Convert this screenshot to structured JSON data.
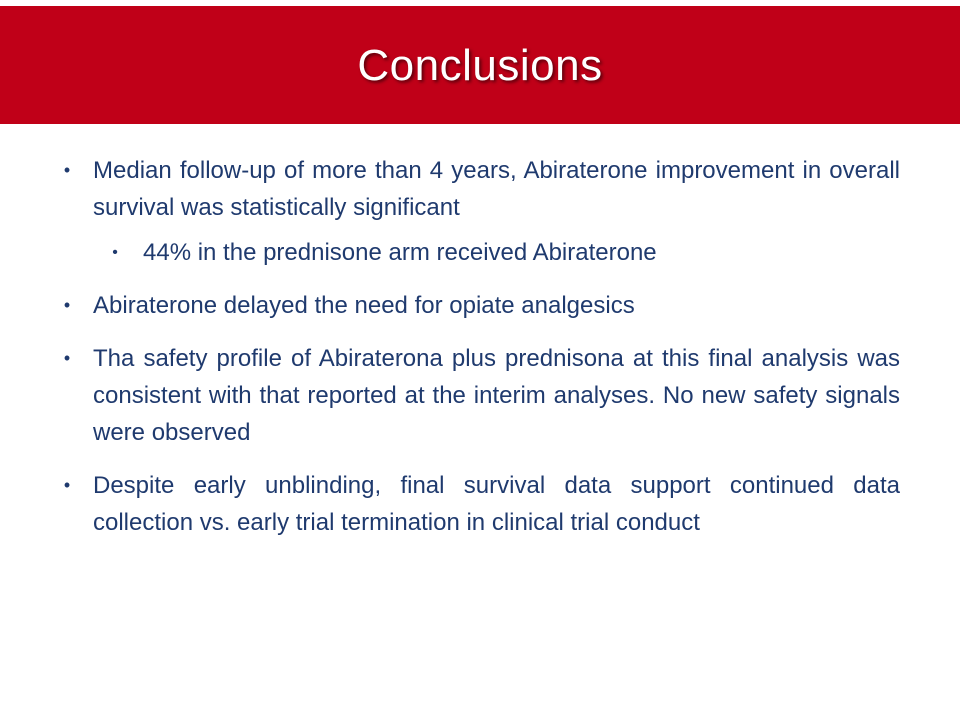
{
  "title": "Conclusions",
  "colors": {
    "banner": "#c00018",
    "title_text": "#ffffff",
    "body_text": "#1f3a6e"
  },
  "bullets": [
    {
      "text": "Median follow-up of more than 4 years, Abiraterone improvement in overall survival was statistically significant",
      "sub": [
        "44% in the prednisone arm received Abiraterone"
      ]
    },
    {
      "text": "Abiraterone delayed the need for opiate analgesics",
      "sub": []
    },
    {
      "text": "Tha safety profile of Abiraterona plus prednisona at this final analysis was consistent with that reported at the interim analyses. No new safety signals were observed",
      "sub": []
    },
    {
      "text": "Despite early unblinding, final survival data support continued data collection vs. early trial termination in clinical trial conduct",
      "sub": []
    }
  ],
  "bullet_glyph": "•"
}
